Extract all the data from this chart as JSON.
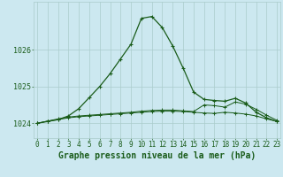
{
  "title": "Graphe pression niveau de la mer (hPa)",
  "background_color": "#cce8f0",
  "grid_color": "#aacccc",
  "line_color": "#1a5c1a",
  "x_ticks": [
    0,
    1,
    2,
    3,
    4,
    5,
    6,
    7,
    8,
    9,
    10,
    11,
    12,
    13,
    14,
    15,
    16,
    17,
    18,
    19,
    20,
    21,
    22,
    23
  ],
  "y_ticks": [
    1024,
    1025,
    1026
  ],
  "ylim": [
    1023.6,
    1027.3
  ],
  "xlim": [
    -0.3,
    23.3
  ],
  "series1_y": [
    1024.0,
    1024.05,
    1024.1,
    1024.2,
    1024.4,
    1024.7,
    1025.0,
    1025.35,
    1025.75,
    1026.15,
    1026.85,
    1026.9,
    1026.6,
    1026.1,
    1025.5,
    1024.85,
    1024.65,
    1024.62,
    1024.6,
    1024.68,
    1024.55,
    1024.3,
    1024.15,
    1024.05
  ],
  "series2_y": [
    1024.0,
    1024.06,
    1024.1,
    1024.15,
    1024.18,
    1024.2,
    1024.22,
    1024.24,
    1024.26,
    1024.28,
    1024.3,
    1024.32,
    1024.33,
    1024.33,
    1024.32,
    1024.3,
    1024.28,
    1024.27,
    1024.3,
    1024.28,
    1024.25,
    1024.2,
    1024.12,
    1024.05
  ],
  "series3_y": [
    1024.0,
    1024.06,
    1024.12,
    1024.17,
    1024.2,
    1024.22,
    1024.24,
    1024.26,
    1024.28,
    1024.3,
    1024.33,
    1024.35,
    1024.36,
    1024.36,
    1024.34,
    1024.32,
    1024.5,
    1024.48,
    1024.44,
    1024.58,
    1024.52,
    1024.38,
    1024.22,
    1024.08
  ],
  "title_fontsize": 7,
  "tick_fontsize": 5.5
}
